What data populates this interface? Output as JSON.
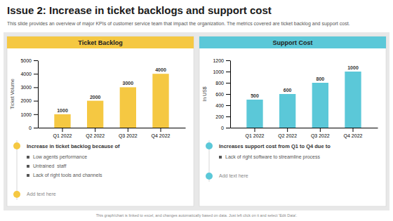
{
  "title": "Issue 2: Increase in ticket backlogs and support cost",
  "subtitle": "This slide provides an overview of major KPIs of customer service team that impact the organization. The metrics covered are ticket backlog and support cost.",
  "footer": "This graph/chart is linked to excel, and changes automatically based on data. Just left click on it and select 'Edit Data'.",
  "chart_data": [
    {
      "type": "bar",
      "title": "Ticket Backlog",
      "categories": [
        "Q1 2022",
        "Q2 2022",
        "Q3 2022",
        "Q4 2022"
      ],
      "values": [
        1000,
        2000,
        3000,
        4000
      ],
      "ylabel": "Ticket Volume",
      "ylim": [
        0,
        5000
      ],
      "yticks": [
        0,
        1000,
        2000,
        3000,
        4000,
        5000
      ],
      "color": "#F5C842",
      "grid": false,
      "data_labels": true,
      "annotations": [
        "Increase in ticket backlog because of",
        "Low agents performance",
        "Untrained  staff",
        "Lack of right tools and channels",
        "Add text here"
      ]
    },
    {
      "type": "bar",
      "title": "Support Cost",
      "categories": [
        "Q1 2022",
        "Q2 2022",
        "Q3 2022",
        "Q4 2022"
      ],
      "values": [
        500,
        600,
        800,
        1000
      ],
      "ylabel": "In US$",
      "ylim": [
        0,
        1200
      ],
      "yticks": [
        0,
        200,
        400,
        600,
        800,
        1000,
        1200
      ],
      "color": "#5BC8D8",
      "grid": false,
      "data_labels": true,
      "annotations": [
        "Increases support cost from Q1 to Q4 due to",
        "Lack of right software to streamline process",
        "Add text here"
      ]
    }
  ]
}
